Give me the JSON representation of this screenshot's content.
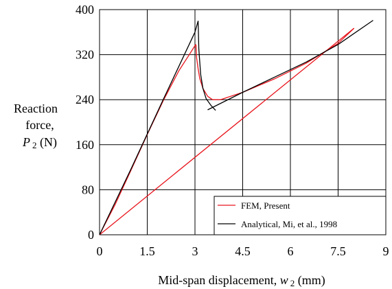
{
  "chart_data": {
    "type": "line",
    "title": "",
    "xlabel": {
      "prefix": "Mid-span displacement, ",
      "var": "w",
      "sub": "2",
      "suffix": " (mm)"
    },
    "ylabel": {
      "line1": "Reaction",
      "line2": "force,",
      "var": "P",
      "sub": "2",
      "suffix": " (N)"
    },
    "xlim": [
      0,
      9
    ],
    "ylim": [
      0,
      400
    ],
    "xticks": [
      "0",
      "1.5",
      "3",
      "4.5",
      "6",
      "7.5",
      "9"
    ],
    "yticks": [
      "0",
      "80",
      "160",
      "240",
      "320",
      "400"
    ],
    "grid": true,
    "legend_position": "bottom-right",
    "series": [
      {
        "name": "FEM, Present",
        "color": "#e8141c",
        "segments": [
          {
            "x": [
              0,
              0.5,
              1.0,
              1.5,
              2.0,
              2.5,
              2.8,
              3.0,
              3.03
            ],
            "y": [
              0,
              55,
              116,
              178,
              238,
              292,
              318,
              336,
              338
            ]
          },
          {
            "x": [
              3.03,
              3.05,
              3.1,
              3.15,
              3.25,
              3.4,
              3.55,
              3.8,
              4.5,
              5.5,
              6.5,
              7.5,
              8.0
            ],
            "y": [
              338,
              315,
              295,
              278,
              260,
              246,
              240,
              240,
              253,
              277,
              305,
              340,
              367
            ]
          },
          {
            "x": [
              0,
              8.0
            ],
            "y": [
              0,
              367
            ]
          }
        ]
      },
      {
        "name": "Analytical, Mi, et al., 1998",
        "color": "#000000",
        "segments": [
          {
            "x": [
              0,
              1.0,
              2.0,
              3.0,
              3.1
            ],
            "y": [
              0,
              118,
              240,
              360,
              380
            ]
          },
          {
            "x": [
              3.1,
              3.12,
              3.18,
              3.25,
              3.35,
              3.5,
              3.65
            ],
            "y": [
              380,
              330,
              285,
              260,
              242,
              230,
              221
            ]
          },
          {
            "x": [
              3.4,
              4.5,
              5.5,
              6.5,
              7.5,
              8.6
            ],
            "y": [
              222,
              253,
              280,
              307,
              338,
              381
            ]
          }
        ]
      }
    ]
  }
}
